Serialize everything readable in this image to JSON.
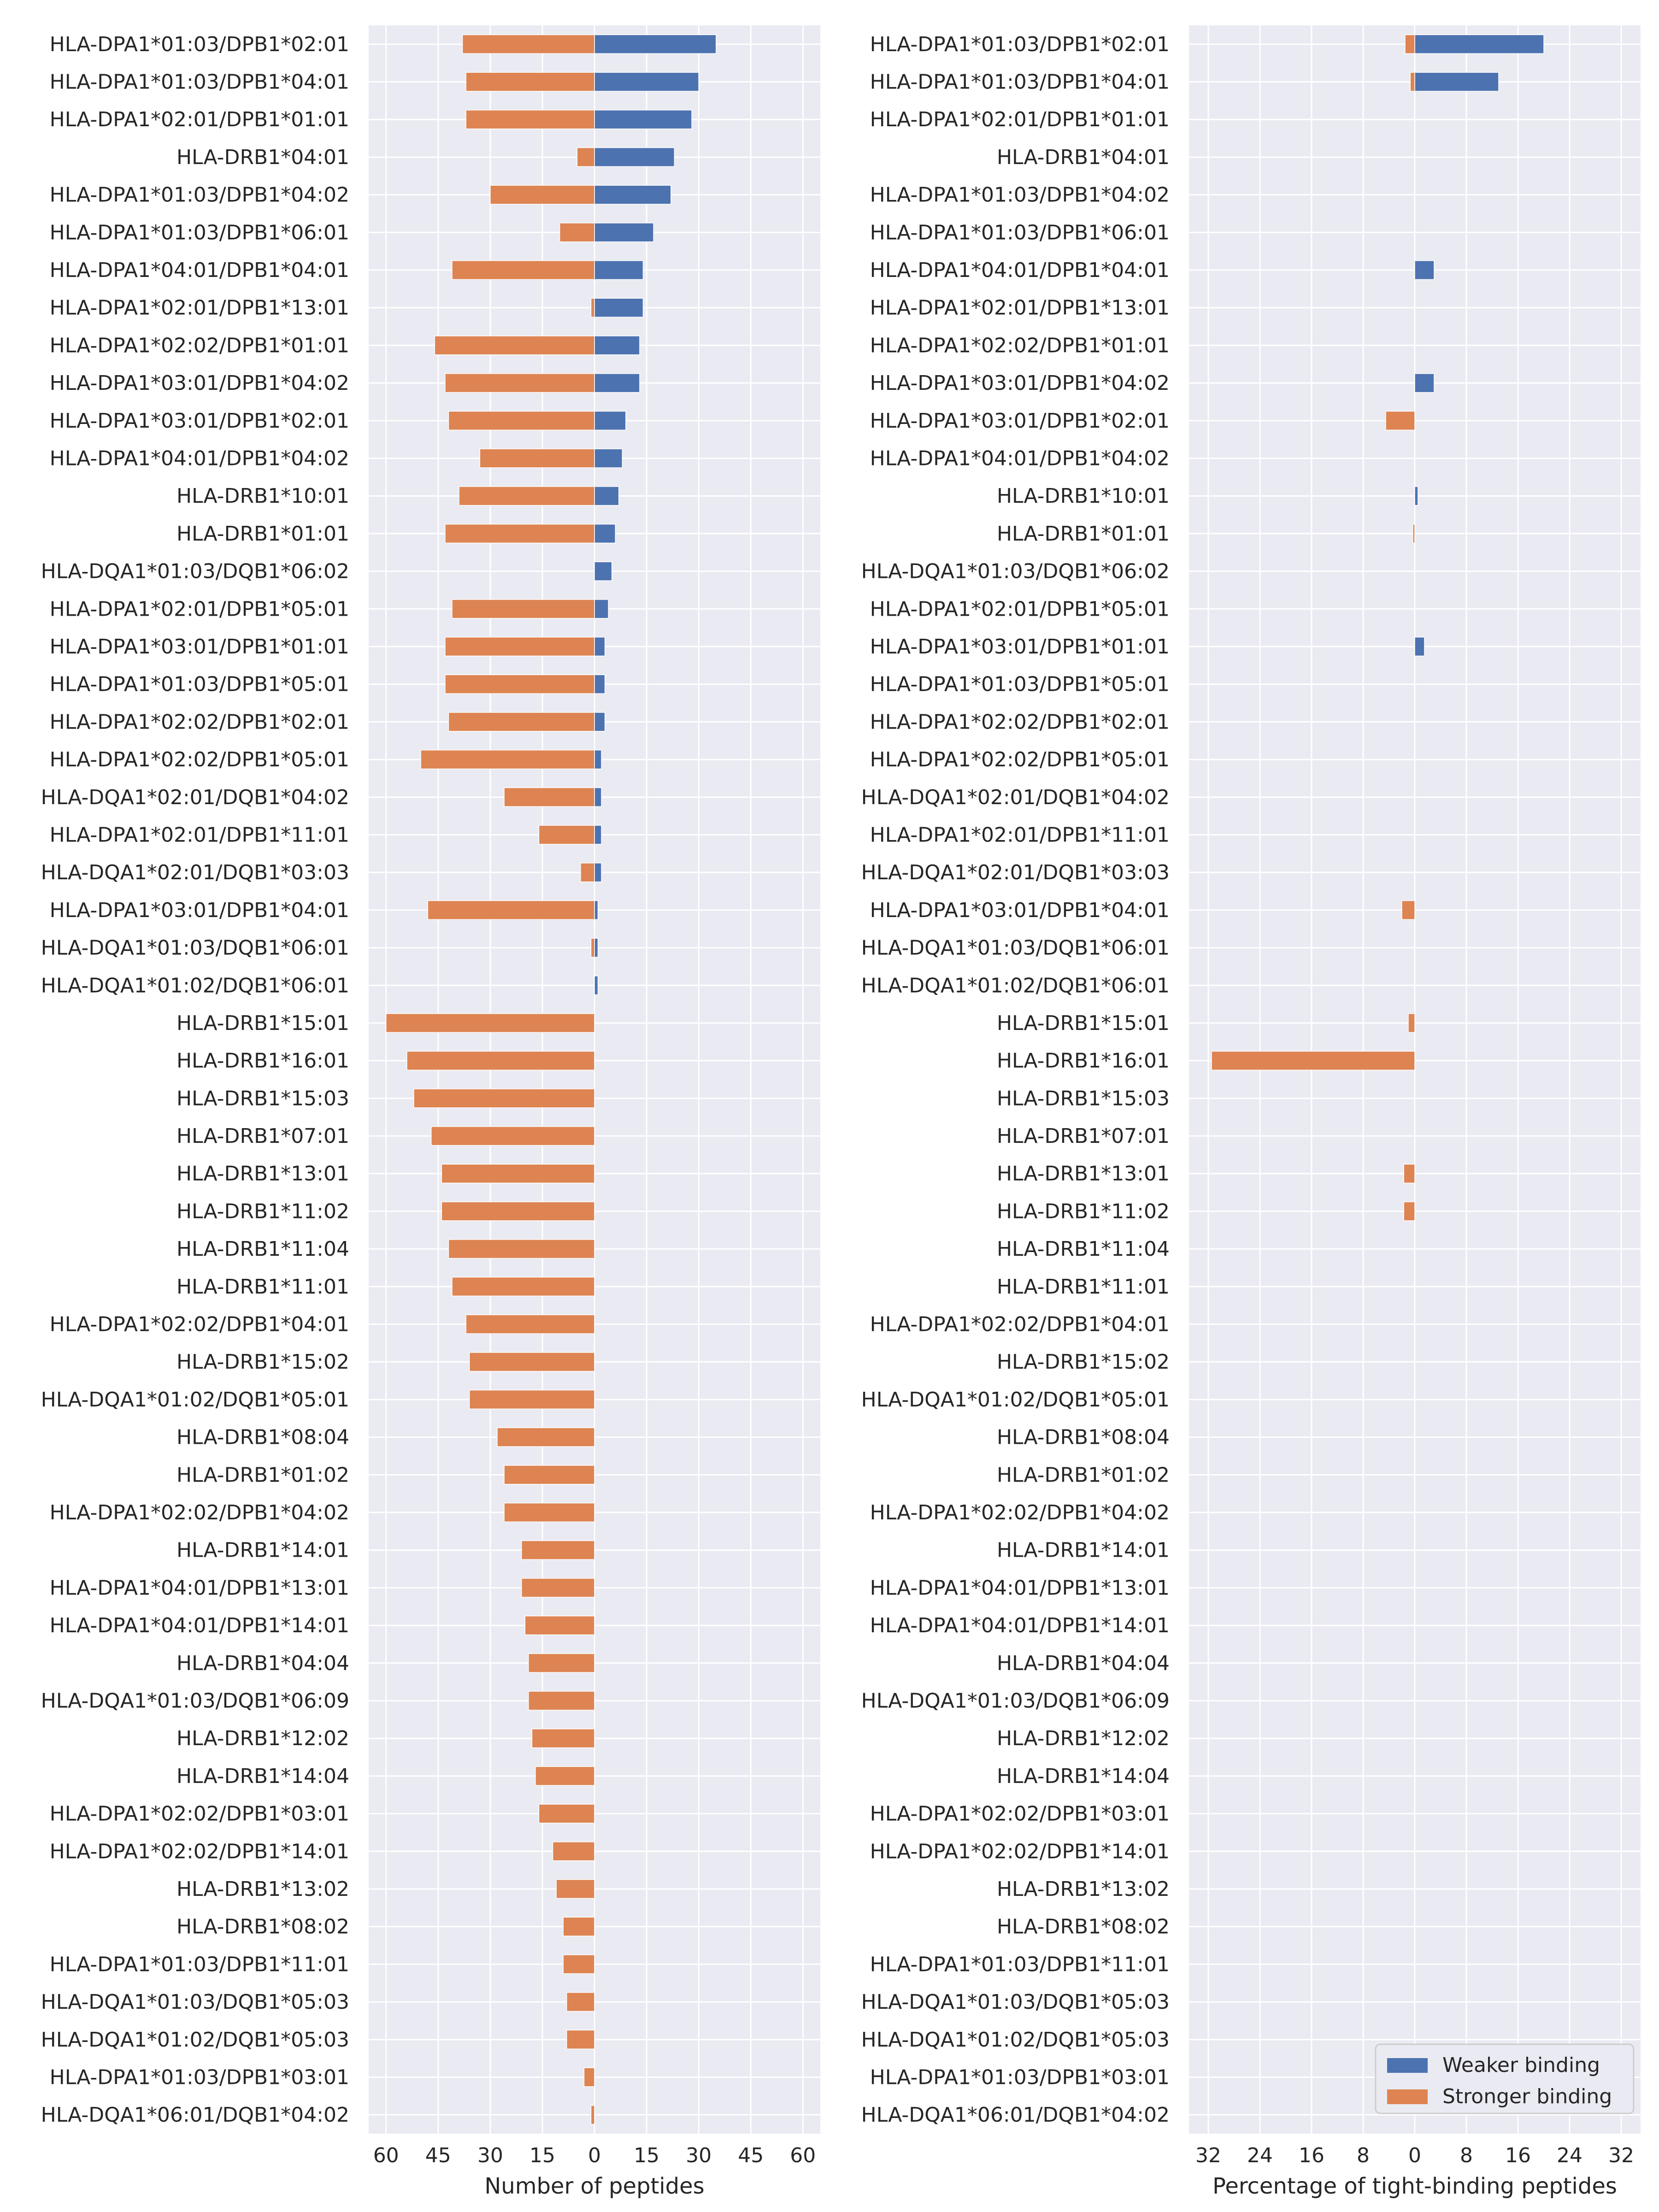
{
  "colors": {
    "weaker": "#4c72b0",
    "stronger": "#dd8452",
    "panel_bg": "#eaeaf2",
    "grid": "#ffffff",
    "text": "#262626"
  },
  "legend": {
    "weaker_label": "Weaker binding",
    "stronger_label": "Stronger binding",
    "placement": "lower-right"
  },
  "chart_data": [
    {
      "type": "bar",
      "orientation": "horizontal-diverging",
      "xlabel": "Number of peptides",
      "ylabel": "",
      "xlim": [
        -65,
        65
      ],
      "xticks": [
        -60,
        -45,
        -30,
        -15,
        0,
        15,
        30,
        45,
        60
      ],
      "xtick_labels": [
        "60",
        "45",
        "30",
        "15",
        "0",
        "15",
        "30",
        "45",
        "60"
      ],
      "grid": true,
      "categories": [
        "HLA-DPA1*01:03/DPB1*02:01",
        "HLA-DPA1*01:03/DPB1*04:01",
        "HLA-DPA1*02:01/DPB1*01:01",
        "HLA-DRB1*04:01",
        "HLA-DPA1*01:03/DPB1*04:02",
        "HLA-DPA1*01:03/DPB1*06:01",
        "HLA-DPA1*04:01/DPB1*04:01",
        "HLA-DPA1*02:01/DPB1*13:01",
        "HLA-DPA1*02:02/DPB1*01:01",
        "HLA-DPA1*03:01/DPB1*04:02",
        "HLA-DPA1*03:01/DPB1*02:01",
        "HLA-DPA1*04:01/DPB1*04:02",
        "HLA-DRB1*10:01",
        "HLA-DRB1*01:01",
        "HLA-DQA1*01:03/DQB1*06:02",
        "HLA-DPA1*02:01/DPB1*05:01",
        "HLA-DPA1*03:01/DPB1*01:01",
        "HLA-DPA1*01:03/DPB1*05:01",
        "HLA-DPA1*02:02/DPB1*02:01",
        "HLA-DPA1*02:02/DPB1*05:01",
        "HLA-DQA1*02:01/DQB1*04:02",
        "HLA-DPA1*02:01/DPB1*11:01",
        "HLA-DQA1*02:01/DQB1*03:03",
        "HLA-DPA1*03:01/DPB1*04:01",
        "HLA-DQA1*01:03/DQB1*06:01",
        "HLA-DQA1*01:02/DQB1*06:01",
        "HLA-DRB1*15:01",
        "HLA-DRB1*16:01",
        "HLA-DRB1*15:03",
        "HLA-DRB1*07:01",
        "HLA-DRB1*13:01",
        "HLA-DRB1*11:02",
        "HLA-DRB1*11:04",
        "HLA-DRB1*11:01",
        "HLA-DPA1*02:02/DPB1*04:01",
        "HLA-DRB1*15:02",
        "HLA-DQA1*01:02/DQB1*05:01",
        "HLA-DRB1*08:04",
        "HLA-DRB1*01:02",
        "HLA-DPA1*02:02/DPB1*04:02",
        "HLA-DRB1*14:01",
        "HLA-DPA1*04:01/DPB1*13:01",
        "HLA-DPA1*04:01/DPB1*14:01",
        "HLA-DRB1*04:04",
        "HLA-DQA1*01:03/DQB1*06:09",
        "HLA-DRB1*12:02",
        "HLA-DRB1*14:04",
        "HLA-DPA1*02:02/DPB1*03:01",
        "HLA-DPA1*02:02/DPB1*14:01",
        "HLA-DRB1*13:02",
        "HLA-DRB1*08:02",
        "HLA-DPA1*01:03/DPB1*11:01",
        "HLA-DQA1*01:03/DQB1*05:03",
        "HLA-DQA1*01:02/DQB1*05:03",
        "HLA-DPA1*01:03/DPB1*03:01",
        "HLA-DQA1*06:01/DQB1*04:02"
      ],
      "series": [
        {
          "name": "Weaker binding",
          "direction": "right",
          "values": [
            35,
            30,
            28,
            23,
            22,
            17,
            14,
            14,
            13,
            13,
            9,
            8,
            7,
            6,
            5,
            4,
            3,
            3,
            3,
            2,
            2,
            2,
            2,
            1,
            1,
            1,
            0,
            0,
            0,
            0,
            0,
            0,
            0,
            0,
            0,
            0,
            0,
            0,
            0,
            0,
            0,
            0,
            0,
            0,
            0,
            0,
            0,
            0,
            0,
            0,
            0,
            0,
            0,
            0,
            0,
            0
          ]
        },
        {
          "name": "Stronger binding",
          "direction": "left",
          "values": [
            38,
            37,
            37,
            5,
            30,
            10,
            41,
            1,
            46,
            43,
            42,
            33,
            39,
            43,
            0,
            41,
            43,
            43,
            42,
            50,
            26,
            16,
            4,
            48,
            1,
            0,
            60,
            54,
            52,
            47,
            44,
            44,
            42,
            41,
            37,
            36,
            36,
            28,
            26,
            26,
            21,
            21,
            20,
            19,
            19,
            18,
            17,
            16,
            12,
            11,
            9,
            9,
            8,
            8,
            3,
            1
          ]
        }
      ]
    },
    {
      "type": "bar",
      "orientation": "horizontal-diverging",
      "xlabel": "Percentage of tight-binding peptides",
      "ylabel": "",
      "xlim": [
        -35,
        35
      ],
      "xticks": [
        -32,
        -24,
        -16,
        -8,
        0,
        8,
        16,
        24,
        32
      ],
      "xtick_labels": [
        "32",
        "24",
        "16",
        "8",
        "0",
        "8",
        "16",
        "24",
        "32"
      ],
      "grid": true,
      "series": [
        {
          "name": "Weaker binding",
          "direction": "right",
          "values": [
            20,
            13,
            0,
            0,
            0,
            0,
            3,
            0,
            0,
            3,
            0,
            0,
            0.5,
            0,
            0,
            0,
            1.5,
            0,
            0,
            0,
            0,
            0,
            0,
            0,
            0,
            0,
            0,
            0,
            0,
            0,
            0,
            0,
            0,
            0,
            0,
            0,
            0,
            0,
            0,
            0,
            0,
            0,
            0,
            0,
            0,
            0,
            0,
            0,
            0,
            0,
            0,
            0,
            0,
            0,
            0,
            0
          ]
        },
        {
          "name": "Stronger binding",
          "direction": "left",
          "values": [
            1.5,
            0.7,
            0,
            0,
            0,
            0,
            0,
            0,
            0,
            0,
            4.5,
            0,
            0,
            0.3,
            0,
            0,
            0,
            0,
            0,
            0,
            0,
            0,
            0,
            2,
            0,
            0,
            1,
            31.5,
            0,
            0,
            1.7,
            1.7,
            0,
            0,
            0,
            0,
            0,
            0,
            0,
            0,
            0,
            0,
            0,
            0,
            0,
            0,
            0,
            0,
            0,
            0,
            0,
            0,
            0,
            0,
            0,
            0
          ]
        }
      ]
    }
  ]
}
